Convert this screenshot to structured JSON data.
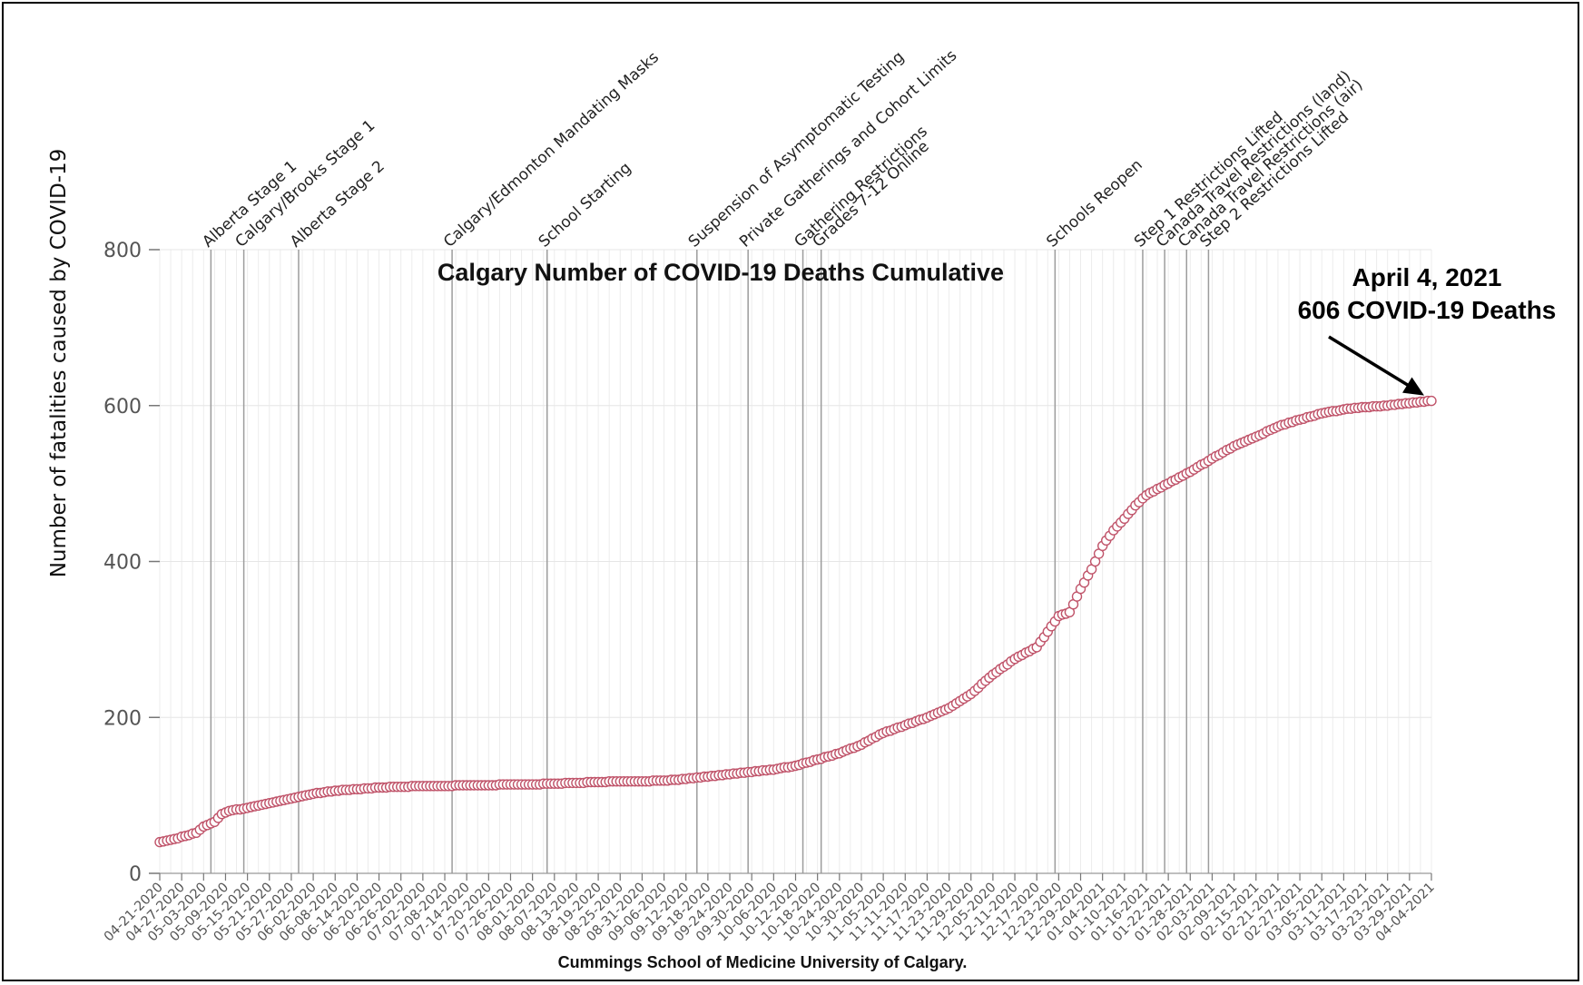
{
  "chart_data": {
    "type": "line",
    "title": "Calgary Number of COVID-19 Deaths Cumulative",
    "ylabel": "Number of fatalities caused by COVID-19",
    "xlabel": "Cummings School of Medicine University of Calgary.",
    "ylim": [
      0,
      800
    ],
    "yticks": [
      0,
      200,
      400,
      600,
      800
    ],
    "x_start": "2020-04-21",
    "x_end": "2021-04-04",
    "xtick_labels": [
      "04-21-2020",
      "04-27-2020",
      "05-03-2020",
      "05-09-2020",
      "05-15-2020",
      "05-21-2020",
      "05-27-2020",
      "06-02-2020",
      "06-08-2020",
      "06-14-2020",
      "06-20-2020",
      "06-26-2020",
      "07-02-2020",
      "07-08-2020",
      "07-14-2020",
      "07-20-2020",
      "07-26-2020",
      "08-01-2020",
      "08-07-2020",
      "08-13-2020",
      "08-19-2020",
      "08-25-2020",
      "08-31-2020",
      "09-06-2020",
      "09-12-2020",
      "09-18-2020",
      "09-24-2020",
      "09-30-2020",
      "10-06-2020",
      "10-12-2020",
      "10-18-2020",
      "10-24-2020",
      "10-30-2020",
      "11-05-2020",
      "11-11-2020",
      "11-17-2020",
      "11-23-2020",
      "11-29-2020",
      "12-05-2020",
      "12-11-2020",
      "12-17-2020",
      "12-23-2020",
      "12-29-2020",
      "01-04-2021",
      "01-10-2021",
      "01-16-2021",
      "01-22-2021",
      "01-28-2021",
      "02-03-2021",
      "02-09-2021",
      "02-15-2021",
      "02-21-2021",
      "02-27-2021",
      "03-05-2021",
      "03-11-2021",
      "03-17-2021",
      "03-23-2021",
      "03-29-2021",
      "04-04-2021"
    ],
    "events": [
      {
        "date": "2020-05-05",
        "label": "Alberta Stage 1"
      },
      {
        "date": "2020-05-14",
        "label": "Calgary/Brooks Stage 1"
      },
      {
        "date": "2020-05-29",
        "label": "Alberta Stage 2"
      },
      {
        "date": "2020-07-10",
        "label": "Calgary/Edmonton Mandating Masks"
      },
      {
        "date": "2020-08-05",
        "label": "School Starting"
      },
      {
        "date": "2020-09-15",
        "label": "Suspension of Asymptomatic Testing"
      },
      {
        "date": "2020-09-29",
        "label": "Private Gatherings and Cohort Limits"
      },
      {
        "date": "2020-10-14",
        "label": "Gathering Restrictions"
      },
      {
        "date": "2020-10-19",
        "label": "Grades 7-12 Online"
      },
      {
        "date": "2020-12-22",
        "label": "Schools Reopen"
      },
      {
        "date": "2021-01-15",
        "label": "Step 1 Restrictions Lifted"
      },
      {
        "date": "2021-01-21",
        "label": "Canada Travel Restrictions (land)"
      },
      {
        "date": "2021-01-27",
        "label": "Canada Travel Restrictions (air)"
      },
      {
        "date": "2021-02-02",
        "label": "Step 2 Restrictions Lifted"
      }
    ],
    "series": [
      {
        "color": "#c0546a",
        "points": [
          [
            "2020-04-21",
            40
          ],
          [
            "2020-04-25",
            44
          ],
          [
            "2020-04-28",
            48
          ],
          [
            "2020-05-01",
            52
          ],
          [
            "2020-05-03",
            60
          ],
          [
            "2020-05-06",
            66
          ],
          [
            "2020-05-08",
            76
          ],
          [
            "2020-05-10",
            80
          ],
          [
            "2020-05-15",
            84
          ],
          [
            "2020-05-21",
            90
          ],
          [
            "2020-05-27",
            96
          ],
          [
            "2020-06-02",
            102
          ],
          [
            "2020-06-08",
            106
          ],
          [
            "2020-06-14",
            108
          ],
          [
            "2020-06-20",
            110
          ],
          [
            "2020-06-26",
            111
          ],
          [
            "2020-07-02",
            112
          ],
          [
            "2020-07-08",
            112
          ],
          [
            "2020-07-14",
            113
          ],
          [
            "2020-07-20",
            113
          ],
          [
            "2020-07-26",
            114
          ],
          [
            "2020-08-01",
            114
          ],
          [
            "2020-08-07",
            115
          ],
          [
            "2020-08-13",
            116
          ],
          [
            "2020-08-19",
            117
          ],
          [
            "2020-08-25",
            118
          ],
          [
            "2020-08-31",
            118
          ],
          [
            "2020-09-06",
            119
          ],
          [
            "2020-09-12",
            121
          ],
          [
            "2020-09-18",
            124
          ],
          [
            "2020-09-24",
            127
          ],
          [
            "2020-09-30",
            130
          ],
          [
            "2020-10-06",
            133
          ],
          [
            "2020-10-12",
            138
          ],
          [
            "2020-10-18",
            146
          ],
          [
            "2020-10-24",
            154
          ],
          [
            "2020-10-30",
            165
          ],
          [
            "2020-11-05",
            180
          ],
          [
            "2020-11-11",
            190
          ],
          [
            "2020-11-17",
            200
          ],
          [
            "2020-11-23",
            212
          ],
          [
            "2020-11-29",
            230
          ],
          [
            "2020-12-05",
            255
          ],
          [
            "2020-12-11",
            275
          ],
          [
            "2020-12-17",
            290
          ],
          [
            "2020-12-20",
            310
          ],
          [
            "2020-12-23",
            330
          ],
          [
            "2020-12-26",
            335
          ],
          [
            "2020-12-29",
            365
          ],
          [
            "2021-01-01",
            390
          ],
          [
            "2021-01-04",
            420
          ],
          [
            "2021-01-07",
            440
          ],
          [
            "2021-01-10",
            455
          ],
          [
            "2021-01-13",
            472
          ],
          [
            "2021-01-16",
            485
          ],
          [
            "2021-01-22",
            500
          ],
          [
            "2021-01-28",
            515
          ],
          [
            "2021-02-03",
            532
          ],
          [
            "2021-02-09",
            548
          ],
          [
            "2021-02-15",
            560
          ],
          [
            "2021-02-21",
            573
          ],
          [
            "2021-02-27",
            582
          ],
          [
            "2021-03-05",
            590
          ],
          [
            "2021-03-11",
            595
          ],
          [
            "2021-03-17",
            598
          ],
          [
            "2021-03-23",
            600
          ],
          [
            "2021-03-29",
            603
          ],
          [
            "2021-04-04",
            606
          ]
        ]
      }
    ],
    "annotation": {
      "date": "2021-04-04",
      "value": 606,
      "line1": "April 4, 2021",
      "line2": "606 COVID-19 Deaths"
    },
    "grid": true
  }
}
